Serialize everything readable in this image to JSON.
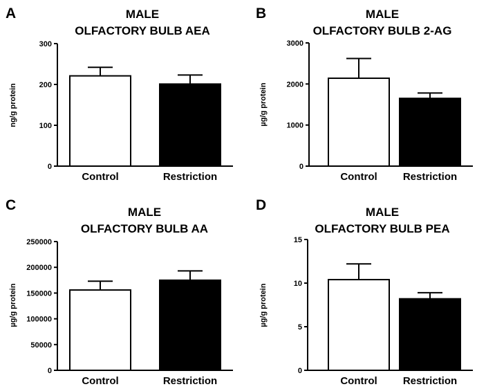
{
  "chart_data": [
    {
      "type": "bar",
      "panel": "A",
      "title": "MALE",
      "subtitle": "OLFACTORY BULB AEA",
      "xlabel": "",
      "ylabel": "ng/g protein",
      "categories": [
        "Control",
        "Restriction"
      ],
      "values": [
        221,
        201
      ],
      "errors": [
        21,
        22
      ],
      "fills": [
        "#ffffff",
        "#000000"
      ],
      "ylim": [
        0,
        300
      ],
      "yticks": [
        0,
        100,
        200,
        300
      ],
      "ytick_labels": [
        "0",
        "100",
        "200",
        "300"
      ],
      "grid": false,
      "legend": "none"
    },
    {
      "type": "bar",
      "panel": "B",
      "title": "MALE",
      "subtitle": "OLFACTORY BULB 2-AG",
      "xlabel": "",
      "ylabel": "µg/g protein",
      "categories": [
        "Control",
        "Restriction"
      ],
      "values": [
        2140,
        1650
      ],
      "errors": [
        480,
        130
      ],
      "fills": [
        "#ffffff",
        "#000000"
      ],
      "ylim": [
        0,
        3000
      ],
      "yticks": [
        0,
        1000,
        2000,
        3000
      ],
      "ytick_labels": [
        "0",
        "1000",
        "2000",
        "3000"
      ],
      "grid": false,
      "legend": "none"
    },
    {
      "type": "bar",
      "panel": "C",
      "title": "MALE",
      "subtitle": "OLFACTORY BULB AA",
      "xlabel": "",
      "ylabel": "µg/g protein",
      "categories": [
        "Control",
        "Restriction"
      ],
      "values": [
        156000,
        175000
      ],
      "errors": [
        17000,
        18000
      ],
      "fills": [
        "#ffffff",
        "#000000"
      ],
      "ylim": [
        0,
        250000
      ],
      "yticks": [
        0,
        50000,
        100000,
        150000,
        200000,
        250000
      ],
      "ytick_labels": [
        "0",
        "50000",
        "100000",
        "150000",
        "200000",
        "250000"
      ],
      "grid": false,
      "legend": "none"
    },
    {
      "type": "bar",
      "panel": "D",
      "title": "MALE",
      "subtitle": "OLFACTORY BULB PEA",
      "xlabel": "",
      "ylabel": "µg/g protein",
      "categories": [
        "Control",
        "Restriction"
      ],
      "values": [
        10.4,
        8.2
      ],
      "errors": [
        1.8,
        0.7
      ],
      "fills": [
        "#ffffff",
        "#000000"
      ],
      "ylim": [
        0,
        15
      ],
      "yticks": [
        0,
        5,
        10,
        15
      ],
      "ytick_labels": [
        "0",
        "5",
        "10",
        "15"
      ],
      "grid": false,
      "legend": "none"
    }
  ]
}
